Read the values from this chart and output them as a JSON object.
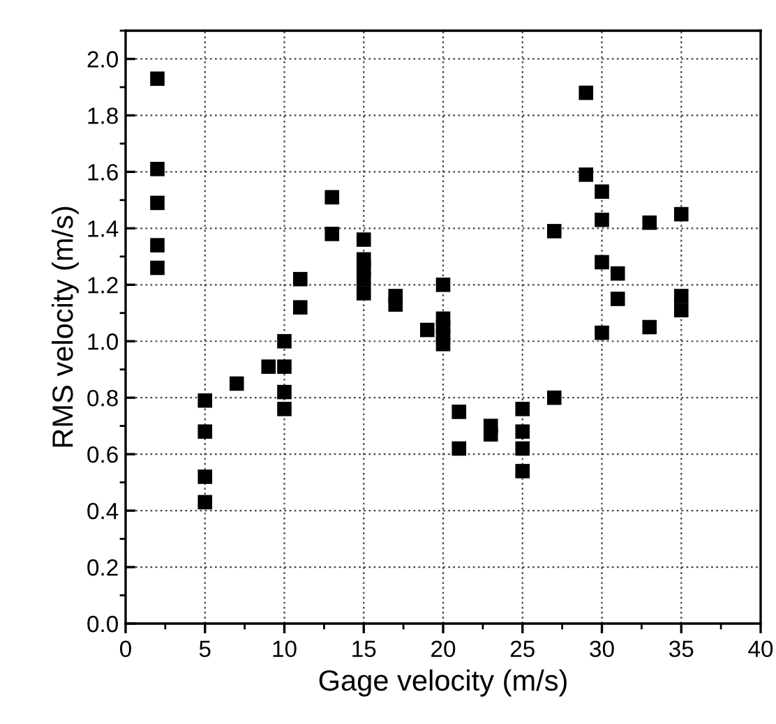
{
  "chart_data": {
    "type": "scatter",
    "xlabel": "Gage velocity (m/s)",
    "ylabel": "RMS velocity (m/s)",
    "x": [
      2,
      2,
      2,
      2,
      2,
      5,
      5,
      5,
      5,
      7,
      9,
      10,
      10,
      10,
      10,
      11,
      11,
      13,
      13,
      15,
      15,
      15,
      15,
      15,
      17,
      17,
      19,
      20,
      20,
      20,
      20,
      20,
      21,
      21,
      23,
      23,
      25,
      25,
      25,
      25,
      27,
      27,
      29,
      29,
      30,
      30,
      30,
      30,
      31,
      31,
      33,
      33,
      35,
      35,
      35
    ],
    "values": [
      1.93,
      1.61,
      1.49,
      1.34,
      1.26,
      0.79,
      0.68,
      0.52,
      0.43,
      0.85,
      0.91,
      1.0,
      0.91,
      0.82,
      0.76,
      1.22,
      1.12,
      1.51,
      1.38,
      1.36,
      1.29,
      1.26,
      1.22,
      1.17,
      1.16,
      1.13,
      1.04,
      1.2,
      1.08,
      1.05,
      1.02,
      0.99,
      0.75,
      0.62,
      0.7,
      0.67,
      0.76,
      0.68,
      0.62,
      0.54,
      1.39,
      0.8,
      1.88,
      1.59,
      1.53,
      1.43,
      1.28,
      1.03,
      1.24,
      1.15,
      1.42,
      1.05,
      1.45,
      1.16,
      1.11
    ],
    "color": "#000000",
    "marker": "square",
    "xlim": [
      0,
      40
    ],
    "xticks": [
      0,
      5,
      10,
      15,
      20,
      25,
      30,
      35,
      40
    ],
    "ylim": [
      0,
      2.1
    ],
    "yticks": [
      {
        "value": 0,
        "label": "0.0"
      },
      {
        "value": 0.2,
        "label": "0.2"
      },
      {
        "value": 0.4,
        "label": "0.4"
      },
      {
        "value": 0.6,
        "label": "0.6"
      },
      {
        "value": 0.8,
        "label": "0.8"
      },
      {
        "value": 1.0,
        "label": "1.0"
      },
      {
        "value": 1.2,
        "label": "1.2"
      },
      {
        "value": 1.4,
        "label": "1.4"
      },
      {
        "value": 1.6,
        "label": "1.6"
      },
      {
        "value": 1.8,
        "label": "1.8"
      },
      {
        "value": 2.0,
        "label": "2.0"
      }
    ],
    "grid": true
  }
}
